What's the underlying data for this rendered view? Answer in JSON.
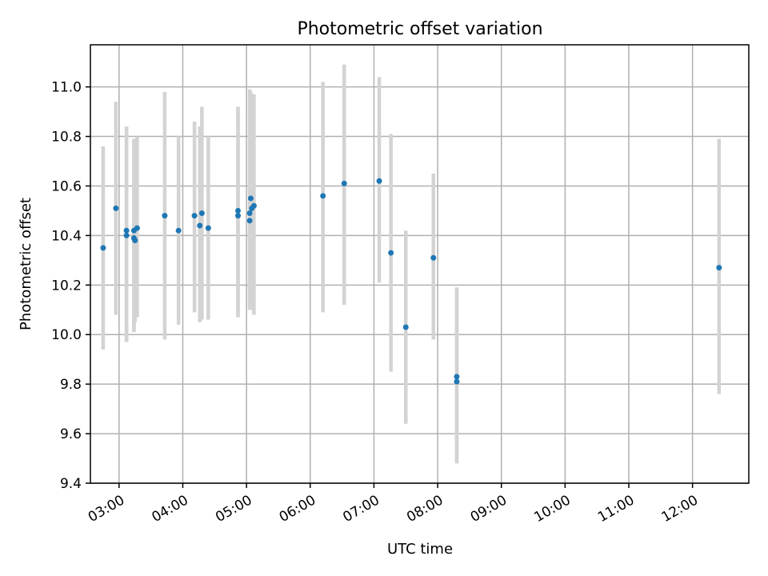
{
  "chart_data": {
    "type": "scatter",
    "title": "Photometric offset variation",
    "xlabel": "UTC time",
    "ylabel": "Photometric offset",
    "xlim": [
      "02:33",
      "12:53"
    ],
    "ylim": [
      9.4,
      11.17
    ],
    "grid": true,
    "x_ticks": [
      "03:00",
      "04:00",
      "05:00",
      "06:00",
      "07:00",
      "08:00",
      "09:00",
      "10:00",
      "11:00",
      "12:00"
    ],
    "y_ticks": [
      "9.4",
      "9.6",
      "9.8",
      "10.0",
      "10.2",
      "10.4",
      "10.6",
      "10.8",
      "11.0"
    ],
    "marker_color": "#1f77b4",
    "errorbar_color": "#d3d3d3",
    "points": [
      {
        "time": "02:45",
        "y": 10.35,
        "err_low": 9.94,
        "err_high": 10.76
      },
      {
        "time": "02:57",
        "y": 10.51,
        "err_low": 10.08,
        "err_high": 10.94
      },
      {
        "time": "03:07",
        "y": 10.42,
        "err_low": 9.97,
        "err_high": 10.84
      },
      {
        "time": "03:07",
        "y": 10.4,
        "err_low": 9.97,
        "err_high": 10.84
      },
      {
        "time": "03:14",
        "y": 10.42,
        "err_low": 10.01,
        "err_high": 10.79
      },
      {
        "time": "03:14",
        "y": 10.39,
        "err_low": 10.01,
        "err_high": 10.79
      },
      {
        "time": "03:15",
        "y": 10.38,
        "err_low": 10.05,
        "err_high": 10.79
      },
      {
        "time": "03:17",
        "y": 10.43,
        "err_low": 10.07,
        "err_high": 10.8
      },
      {
        "time": "03:43",
        "y": 10.48,
        "err_low": 9.98,
        "err_high": 10.98
      },
      {
        "time": "03:56",
        "y": 10.42,
        "err_low": 10.04,
        "err_high": 10.8
      },
      {
        "time": "04:11",
        "y": 10.48,
        "err_low": 10.09,
        "err_high": 10.86
      },
      {
        "time": "04:16",
        "y": 10.44,
        "err_low": 10.05,
        "err_high": 10.84
      },
      {
        "time": "04:18",
        "y": 10.49,
        "err_low": 10.06,
        "err_high": 10.92
      },
      {
        "time": "04:24",
        "y": 10.43,
        "err_low": 10.06,
        "err_high": 10.8
      },
      {
        "time": "04:52",
        "y": 10.5,
        "err_low": 10.07,
        "err_high": 10.92
      },
      {
        "time": "04:52",
        "y": 10.48,
        "err_low": 10.07,
        "err_high": 10.92
      },
      {
        "time": "05:03",
        "y": 10.46,
        "err_low": 10.1,
        "err_high": 10.99
      },
      {
        "time": "05:03",
        "y": 10.49,
        "err_low": 10.1,
        "err_high": 10.99
      },
      {
        "time": "05:04",
        "y": 10.55,
        "err_low": 10.12,
        "err_high": 10.98
      },
      {
        "time": "05:05",
        "y": 10.51,
        "err_low": 10.1,
        "err_high": 10.96
      },
      {
        "time": "05:07",
        "y": 10.52,
        "err_low": 10.08,
        "err_high": 10.97
      },
      {
        "time": "06:12",
        "y": 10.56,
        "err_low": 10.09,
        "err_high": 11.02
      },
      {
        "time": "06:32",
        "y": 10.61,
        "err_low": 10.12,
        "err_high": 11.09
      },
      {
        "time": "07:05",
        "y": 10.62,
        "err_low": 10.21,
        "err_high": 11.04
      },
      {
        "time": "07:16",
        "y": 10.33,
        "err_low": 9.85,
        "err_high": 10.81
      },
      {
        "time": "07:30",
        "y": 10.03,
        "err_low": 9.64,
        "err_high": 10.42
      },
      {
        "time": "07:56",
        "y": 10.31,
        "err_low": 9.98,
        "err_high": 10.65
      },
      {
        "time": "08:18",
        "y": 9.83,
        "err_low": 9.48,
        "err_high": 10.19
      },
      {
        "time": "08:18",
        "y": 9.81,
        "err_low": 9.48,
        "err_high": 10.19
      },
      {
        "time": "12:25",
        "y": 10.27,
        "err_low": 9.76,
        "err_high": 10.79
      }
    ]
  }
}
